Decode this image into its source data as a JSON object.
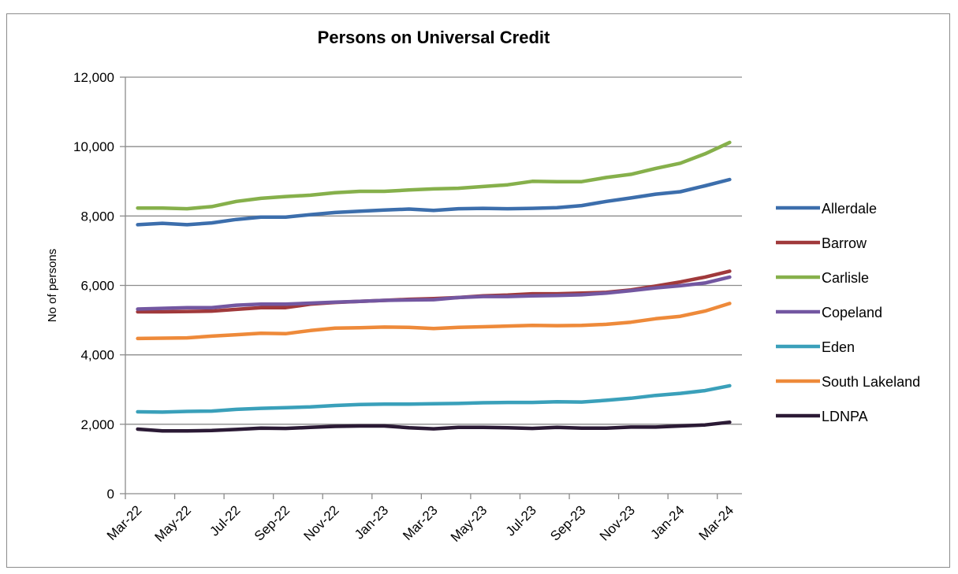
{
  "chart_data": {
    "type": "line",
    "title": "Persons on Universal Credit",
    "ylabel": "No of persons",
    "xlabel": "",
    "ylim": [
      0,
      12000
    ],
    "yticks": [
      0,
      2000,
      4000,
      6000,
      8000,
      10000,
      12000
    ],
    "ytick_labels": [
      "0",
      "2,000",
      "4,000",
      "6,000",
      "8,000",
      "10,000",
      "12,000"
    ],
    "x": [
      "Mar-22",
      "Apr-22",
      "May-22",
      "Jun-22",
      "Jul-22",
      "Aug-22",
      "Sep-22",
      "Oct-22",
      "Nov-22",
      "Dec-22",
      "Jan-23",
      "Feb-23",
      "Mar-23",
      "Apr-23",
      "May-23",
      "Jun-23",
      "Jul-23",
      "Aug-23",
      "Sep-23",
      "Oct-23",
      "Nov-23",
      "Dec-23",
      "Jan-24",
      "Feb-24",
      "Mar-24"
    ],
    "xtick_labels": [
      "Mar-22",
      "May-22",
      "Jul-22",
      "Sep-22",
      "Nov-22",
      "Jan-23",
      "Mar-23",
      "May-23",
      "Jul-23",
      "Sep-23",
      "Nov-23",
      "Jan-24",
      "Mar-24"
    ],
    "grid": "horizontal",
    "legend_position": "right",
    "series": [
      {
        "name": "Allerdale",
        "color": "#3c6eac",
        "values": [
          7750,
          7790,
          7750,
          7800,
          7900,
          7970,
          7970,
          8040,
          8100,
          8140,
          8170,
          8200,
          8160,
          8210,
          8220,
          8210,
          8220,
          8240,
          8300,
          8420,
          8520,
          8630,
          8700,
          8870,
          9050
        ]
      },
      {
        "name": "Barrow",
        "color": "#a0393b",
        "values": [
          5240,
          5240,
          5250,
          5260,
          5310,
          5360,
          5360,
          5460,
          5510,
          5540,
          5570,
          5600,
          5620,
          5650,
          5700,
          5720,
          5760,
          5760,
          5780,
          5800,
          5870,
          5980,
          6100,
          6240,
          6410
        ]
      },
      {
        "name": "Carlisle",
        "color": "#86b04b",
        "values": [
          8230,
          8230,
          8210,
          8270,
          8420,
          8510,
          8560,
          8600,
          8670,
          8710,
          8710,
          8750,
          8780,
          8800,
          8850,
          8900,
          9000,
          8990,
          8990,
          9110,
          9200,
          9370,
          9520,
          9790,
          10120
        ]
      },
      {
        "name": "Copeland",
        "color": "#7357a1",
        "values": [
          5320,
          5340,
          5360,
          5360,
          5430,
          5460,
          5460,
          5490,
          5520,
          5540,
          5570,
          5580,
          5590,
          5650,
          5680,
          5680,
          5700,
          5710,
          5730,
          5780,
          5850,
          5930,
          5990,
          6070,
          6240
        ]
      },
      {
        "name": "Eden",
        "color": "#3aa0ba",
        "values": [
          2360,
          2350,
          2370,
          2380,
          2430,
          2460,
          2480,
          2500,
          2540,
          2570,
          2580,
          2580,
          2590,
          2600,
          2620,
          2630,
          2630,
          2650,
          2640,
          2690,
          2750,
          2830,
          2890,
          2970,
          3110
        ]
      },
      {
        "name": "South Lakeland",
        "color": "#ee8a3a",
        "values": [
          4470,
          4480,
          4490,
          4540,
          4580,
          4620,
          4610,
          4700,
          4770,
          4780,
          4800,
          4790,
          4760,
          4790,
          4810,
          4830,
          4850,
          4840,
          4850,
          4880,
          4940,
          5040,
          5110,
          5260,
          5480
        ]
      },
      {
        "name": "LDNPA",
        "color": "#2b1a35",
        "values": [
          1860,
          1810,
          1810,
          1820,
          1850,
          1890,
          1880,
          1910,
          1940,
          1950,
          1950,
          1900,
          1870,
          1910,
          1910,
          1900,
          1880,
          1910,
          1890,
          1890,
          1920,
          1920,
          1950,
          1980,
          2060
        ]
      }
    ]
  }
}
